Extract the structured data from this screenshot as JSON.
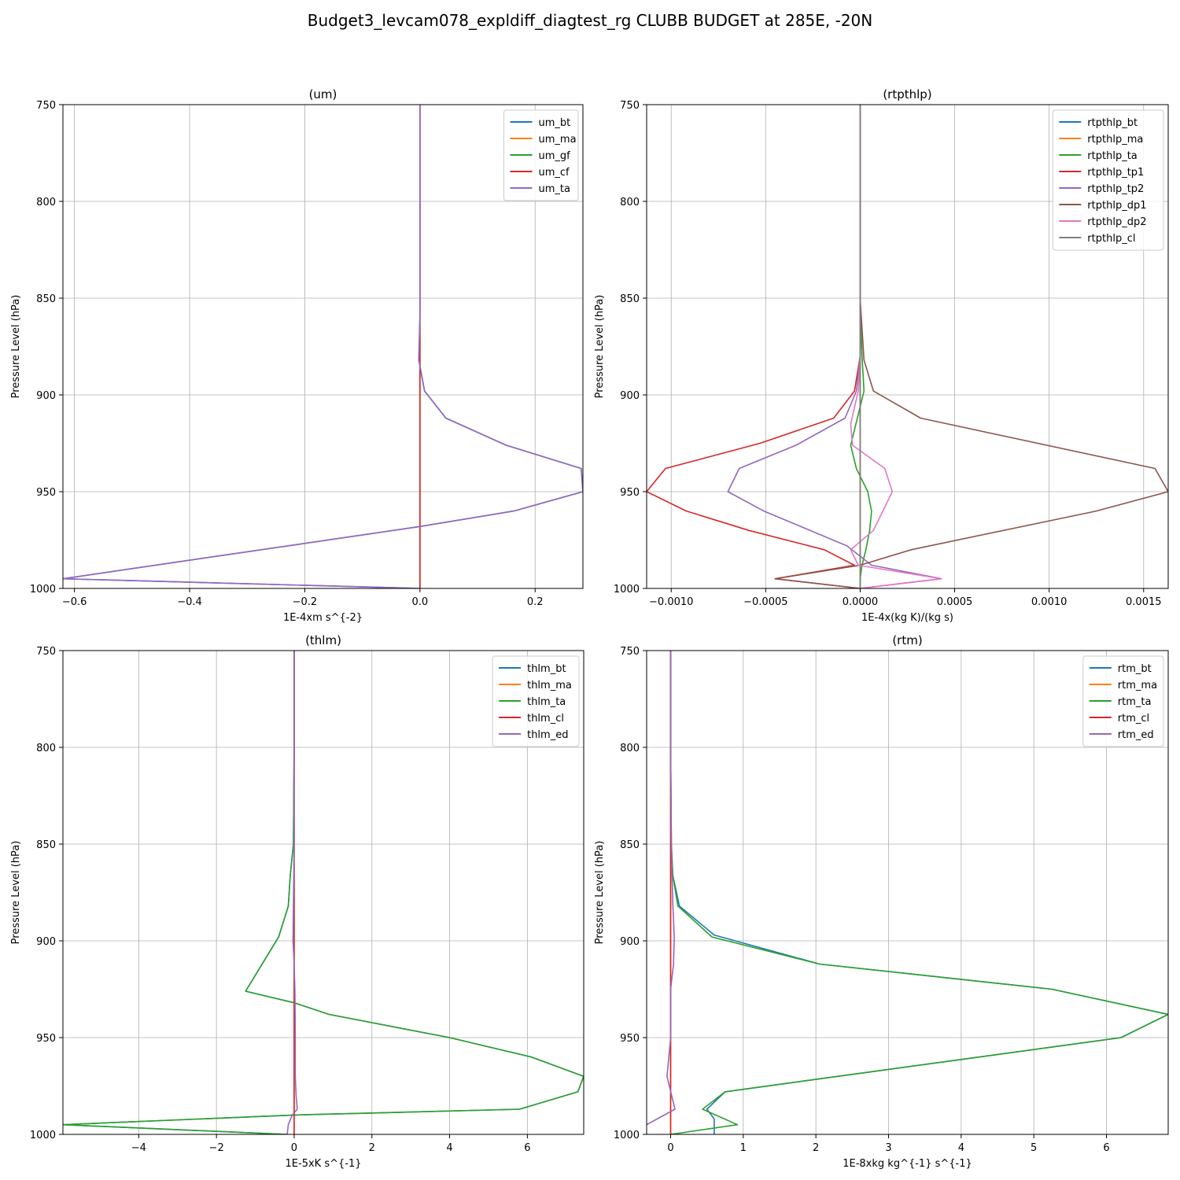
{
  "title": "Budget3_levcam078_expldiff_diagtest_rg CLUBB BUDGET at 285E, -20N",
  "colors": {
    "blue": "#1f77b4",
    "orange": "#ff7f0e",
    "green": "#2ca02c",
    "red": "#d62728",
    "purple": "#9467bd",
    "brown": "#8c564b",
    "pink": "#e377c2",
    "gray": "#7f7f7f",
    "grid": "#b0b0b0"
  },
  "chart_data": [
    {
      "type": "line",
      "title": "(um)",
      "xlabel": "1E-4xm s^{-2}",
      "ylabel": "Pressure Level (hPa)",
      "xlim": [
        -0.62,
        0.283
      ],
      "ylim": [
        1000,
        750
      ],
      "xticks": [
        -0.6,
        -0.4,
        -0.2,
        0.0,
        0.2
      ],
      "xtick_labels": [
        "−0.6",
        "−0.4",
        "−0.2",
        "0.0",
        "0.2"
      ],
      "yticks": [
        750,
        800,
        850,
        900,
        950,
        1000
      ],
      "ytick_labels": [
        "750",
        "800",
        "850",
        "900",
        "950",
        "1000"
      ],
      "grid": true,
      "legend": "top-right",
      "series": [
        {
          "name": "um_bt",
          "color": "#1f77b4",
          "x": [
            0,
            0,
            0,
            -0.002,
            0.008,
            0.045,
            0.15,
            0.28,
            0.283,
            0.163,
            0,
            -0.62,
            0
          ],
          "y": [
            750,
            800,
            860,
            882,
            898,
            912,
            926,
            938,
            950,
            960,
            968,
            995,
            1000
          ]
        },
        {
          "name": "um_ma",
          "color": "#ff7f0e",
          "x": [
            0,
            0,
            0,
            0,
            0,
            0
          ],
          "y": [
            750,
            800,
            850,
            900,
            950,
            1000
          ]
        },
        {
          "name": "um_gf",
          "color": "#2ca02c",
          "x": [
            0,
            0,
            0,
            0,
            0,
            0
          ],
          "y": [
            750,
            800,
            850,
            900,
            950,
            1000
          ]
        },
        {
          "name": "um_cf",
          "color": "#d62728",
          "x": [
            0,
            0,
            0,
            0,
            0,
            0
          ],
          "y": [
            750,
            800,
            850,
            900,
            950,
            1000
          ]
        },
        {
          "name": "um_ta",
          "color": "#9467bd",
          "x": [
            0,
            0,
            0,
            -0.002,
            0.008,
            0.045,
            0.15,
            0.28,
            0.283,
            0.163,
            0,
            -0.62,
            0
          ],
          "y": [
            750,
            800,
            860,
            882,
            898,
            912,
            926,
            938,
            950,
            960,
            968,
            995,
            1000
          ]
        }
      ]
    },
    {
      "type": "line",
      "title": "(rtpthlp)",
      "xlabel": "1E-4x(kg K)/(kg s)",
      "ylabel": "Pressure Level (hPa)",
      "xlim": [
        -0.00113,
        0.00163
      ],
      "ylim": [
        1000,
        750
      ],
      "xticks": [
        -0.001,
        -0.0005,
        0.0,
        0.0005,
        0.001,
        0.0015
      ],
      "xtick_labels": [
        "−0.0010",
        "−0.0005",
        "0.0000",
        "0.0005",
        "0.0010",
        "0.0015"
      ],
      "yticks": [
        750,
        800,
        850,
        900,
        950,
        1000
      ],
      "ytick_labels": [
        "750",
        "800",
        "850",
        "900",
        "950",
        "1000"
      ],
      "grid": true,
      "legend": "top-right",
      "series": [
        {
          "name": "rtpthlp_bt",
          "color": "#1f77b4",
          "x": [
            0,
            0,
            0,
            0,
            0,
            0
          ],
          "y": [
            750,
            800,
            850,
            900,
            950,
            1000
          ]
        },
        {
          "name": "rtpthlp_ma",
          "color": "#ff7f0e",
          "x": [
            0,
            0,
            0,
            0,
            0,
            0
          ],
          "y": [
            750,
            800,
            850,
            900,
            950,
            1000
          ]
        },
        {
          "name": "rtpthlp_ta",
          "color": "#2ca02c",
          "x": [
            0,
            0,
            0,
            1e-05,
            2e-05,
            -5e-05,
            -2e-05,
            4e-05,
            6e-05,
            5e-05,
            3e-05,
            1e-05,
            0,
            0
          ],
          "y": [
            750,
            800,
            850,
            880,
            898,
            926,
            938,
            950,
            960,
            970,
            980,
            988,
            995,
            1000
          ]
        },
        {
          "name": "rtpthlp_tp1",
          "color": "#d62728",
          "x": [
            0,
            0,
            0,
            0,
            -3e-05,
            -0.00014,
            -0.00053,
            -0.00103,
            -0.00113,
            -0.00092,
            -0.00059,
            -0.00019,
            -3e-05,
            -0.00045,
            0
          ],
          "y": [
            750,
            800,
            850,
            880,
            898,
            912,
            925,
            938,
            950,
            960,
            970,
            980,
            988,
            995,
            1000
          ]
        },
        {
          "name": "rtpthlp_tp2",
          "color": "#9467bd",
          "x": [
            0,
            0,
            0,
            0,
            -2e-05,
            -8e-05,
            -0.00034,
            -0.00064,
            -0.0007,
            -0.00051,
            -7e-05,
            6e-05,
            0.00043,
            0
          ],
          "y": [
            750,
            800,
            850,
            880,
            898,
            912,
            926,
            938,
            950,
            960,
            978,
            988,
            995,
            1000
          ]
        },
        {
          "name": "rtpthlp_dp1",
          "color": "#8c564b",
          "x": [
            0,
            0,
            0,
            2e-05,
            7e-05,
            0.00032,
            0.00156,
            0.00163,
            0.00125,
            0.00027,
            0,
            -0.00045,
            0
          ],
          "y": [
            750,
            800,
            850,
            882,
            898,
            912,
            938,
            950,
            960,
            980,
            988,
            995,
            1000
          ]
        },
        {
          "name": "rtpthlp_dp2",
          "color": "#e377c2",
          "x": [
            0,
            0,
            0,
            0,
            -1e-05,
            -5e-05,
            -4e-05,
            0.00013,
            0.00017,
            7e-05,
            -5e-05,
            -1e-05,
            0.00043,
            0
          ],
          "y": [
            750,
            800,
            850,
            880,
            898,
            915,
            926,
            938,
            950,
            970,
            980,
            988,
            995,
            1000
          ]
        },
        {
          "name": "rtpthlp_cl",
          "color": "#7f7f7f",
          "x": [
            0,
            0,
            0,
            0,
            0,
            0
          ],
          "y": [
            750,
            800,
            850,
            900,
            950,
            1000
          ]
        }
      ]
    },
    {
      "type": "line",
      "title": "(thlm)",
      "xlabel": "1E-5xK s^{-1}",
      "ylabel": "Pressure Level (hPa)",
      "xlim": [
        -5.95,
        7.45
      ],
      "ylim": [
        1000,
        750
      ],
      "xticks": [
        -4,
        -2,
        0,
        2,
        4,
        6
      ],
      "xtick_labels": [
        "−4",
        "−2",
        "0",
        "2",
        "4",
        "6"
      ],
      "yticks": [
        750,
        800,
        850,
        900,
        950,
        1000
      ],
      "ytick_labels": [
        "750",
        "800",
        "850",
        "900",
        "950",
        "1000"
      ],
      "grid": true,
      "legend": "top-right",
      "series": [
        {
          "name": "thlm_bt",
          "color": "#1f77b4",
          "x": [
            0,
            0,
            -0.02,
            -0.1,
            -0.15,
            -0.4,
            -1.25,
            0,
            0.9,
            4,
            6.1,
            7.45,
            7.3,
            5.8,
            0,
            -5.95,
            -0.2
          ],
          "y": [
            750,
            800,
            850,
            866,
            882,
            898,
            926,
            932,
            938,
            950,
            960,
            970,
            978,
            987,
            990,
            995,
            1000
          ]
        },
        {
          "name": "thlm_ma",
          "color": "#ff7f0e",
          "x": [
            0,
            0,
            0,
            0,
            0,
            0
          ],
          "y": [
            750,
            800,
            850,
            900,
            950,
            1000
          ]
        },
        {
          "name": "thlm_ta",
          "color": "#2ca02c",
          "x": [
            0,
            0,
            -0.02,
            -0.1,
            -0.15,
            -0.4,
            -1.25,
            0,
            0.9,
            4,
            6.1,
            7.45,
            7.3,
            5.8,
            0,
            -5.95,
            -0.2
          ],
          "y": [
            750,
            800,
            850,
            866,
            882,
            898,
            926,
            932,
            938,
            950,
            960,
            970,
            978,
            987,
            990,
            995,
            1000
          ]
        },
        {
          "name": "thlm_cl",
          "color": "#d62728",
          "x": [
            0,
            0,
            0,
            0,
            0,
            0
          ],
          "y": [
            750,
            800,
            850,
            900,
            950,
            1000
          ]
        },
        {
          "name": "thlm_ed",
          "color": "#9467bd",
          "x": [
            0,
            0,
            0,
            -0.02,
            -0.03,
            0,
            0.02,
            0.03,
            0.03,
            0.05,
            0.08,
            -0.05,
            -0.15,
            -0.18
          ],
          "y": [
            750,
            800,
            850,
            880,
            900,
            912,
            926,
            950,
            970,
            980,
            987,
            990,
            995,
            1000
          ]
        }
      ]
    },
    {
      "type": "line",
      "title": "(rtm)",
      "xlabel": "1E-8xkg kg^{-1} s^{-1}",
      "ylabel": "Pressure Level (hPa)",
      "xlim": [
        -0.33,
        6.85
      ],
      "ylim": [
        1000,
        750
      ],
      "xticks": [
        0,
        1,
        2,
        3,
        4,
        5,
        6
      ],
      "xtick_labels": [
        "0",
        "1",
        "2",
        "3",
        "4",
        "5",
        "6"
      ],
      "yticks": [
        750,
        800,
        850,
        900,
        950,
        1000
      ],
      "ytick_labels": [
        "750",
        "800",
        "850",
        "900",
        "950",
        "1000"
      ],
      "grid": true,
      "legend": "top-right",
      "series": [
        {
          "name": "rtm_bt",
          "color": "#1f77b4",
          "x": [
            0,
            0,
            0.01,
            0.03,
            0.12,
            0.6,
            2.05,
            5.25,
            6.85,
            6.2,
            0.75,
            0.5,
            0.6,
            0.6
          ],
          "y": [
            750,
            800,
            850,
            866,
            882,
            897,
            912,
            925,
            938,
            950,
            978,
            987,
            992,
            1000
          ]
        },
        {
          "name": "rtm_ma",
          "color": "#ff7f0e",
          "x": [
            0,
            0,
            0,
            0,
            0,
            0
          ],
          "y": [
            750,
            800,
            850,
            900,
            950,
            1000
          ]
        },
        {
          "name": "rtm_ta",
          "color": "#2ca02c",
          "x": [
            0,
            0,
            0.01,
            0.03,
            0.1,
            0.57,
            2.05,
            5.25,
            6.85,
            6.2,
            0.75,
            0.44,
            0.92,
            0
          ],
          "y": [
            750,
            800,
            850,
            866,
            882,
            898,
            912,
            925,
            938,
            950,
            978,
            987,
            995,
            1000
          ]
        },
        {
          "name": "rtm_cl",
          "color": "#d62728",
          "x": [
            0,
            0,
            0,
            0,
            0,
            0
          ],
          "y": [
            750,
            800,
            850,
            900,
            950,
            1000
          ]
        },
        {
          "name": "rtm_ed",
          "color": "#9467bd",
          "x": [
            0,
            0,
            0.01,
            0.03,
            0.05,
            0.04,
            0,
            0,
            -0.05,
            0.06,
            -0.33
          ],
          "y": [
            750,
            800,
            850,
            880,
            898,
            912,
            925,
            950,
            970,
            987,
            995
          ]
        }
      ]
    }
  ]
}
